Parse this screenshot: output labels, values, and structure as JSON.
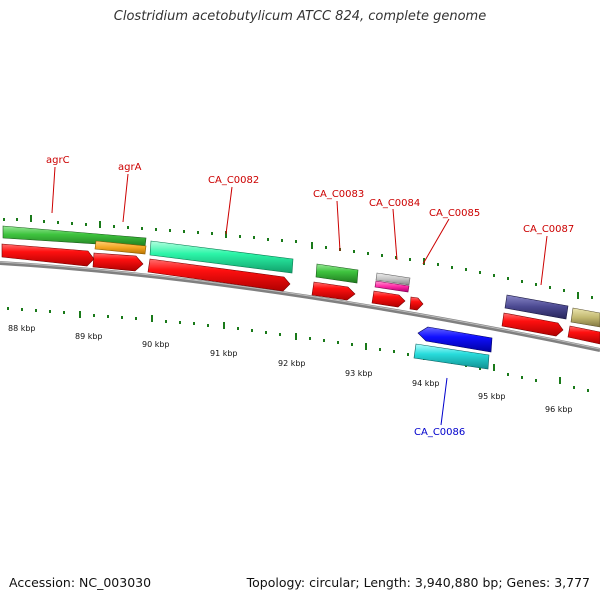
{
  "title": "Clostridium acetobutylicum ATCC 824, complete genome",
  "footer": {
    "accession": "Accession: NC_003030",
    "topology": "Topology: circular; Length: 3,940,880 bp; Genes: 3,777"
  },
  "colors": {
    "label_forward": "#cc0000",
    "label_reverse": "#0000cc",
    "tick": "#1a7a1a",
    "backbone": "#808080"
  },
  "genes": [
    {
      "label": "agrC"
    },
    {
      "label": "agrA"
    },
    {
      "label": "CA_C0082"
    },
    {
      "label": "CA_C0083"
    },
    {
      "label": "CA_C0084"
    },
    {
      "label": "CA_C0085"
    },
    {
      "label": "CA_C0087"
    },
    {
      "label": "CA_C0086"
    }
  ],
  "scale_labels": [
    "88 kbp",
    "89 kbp",
    "90 kbp",
    "91 kbp",
    "92 kbp",
    "93 kbp",
    "94 kbp",
    "95 kbp",
    "96 kbp"
  ]
}
